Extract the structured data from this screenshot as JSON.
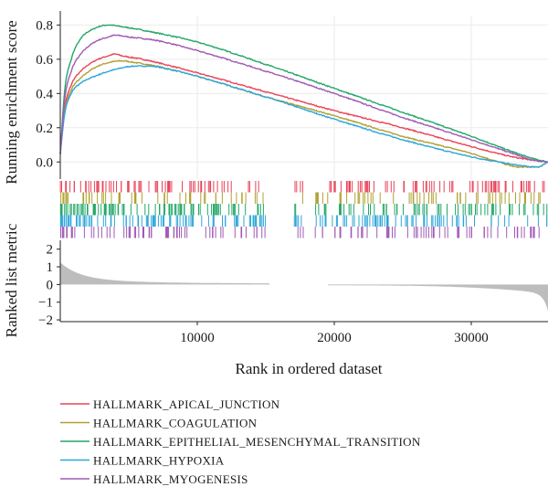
{
  "chart_data": {
    "type": "line",
    "x_axis": {
      "label": "Rank in ordered dataset",
      "range": [
        0,
        35600
      ],
      "ticks": [
        10000,
        20000,
        30000
      ],
      "tick_labels": [
        "10000",
        "20000",
        "30000"
      ]
    },
    "es_panel": {
      "ylabel": "Running enrichment score",
      "ylim": [
        -0.1,
        0.85
      ],
      "yticks": [
        0.0,
        0.2,
        0.4,
        0.6,
        0.8
      ],
      "ytick_labels": [
        "0.0",
        "0.2",
        "0.4",
        "0.6",
        "0.8"
      ],
      "grid": true
    },
    "metric_panel": {
      "ylabel": "Ranked list metric",
      "ylim": [
        -2.1,
        2.5
      ],
      "yticks": [
        2,
        1,
        0,
        -1,
        -2
      ],
      "ytick_labels": [
        "2",
        "1",
        "0",
        "−1",
        "−2"
      ],
      "fill_color": "#bdbdbd"
    },
    "series": [
      {
        "name": "HALLMARK_APICAL_JUNCTION",
        "color": "#e8445a",
        "x": [
          0,
          300,
          800,
          1500,
          2500,
          3500,
          4000,
          4500,
          6000,
          10000,
          15000,
          20000,
          25000,
          30000,
          33000,
          34500,
          35600
        ],
        "values": [
          0.05,
          0.3,
          0.45,
          0.53,
          0.59,
          0.62,
          0.63,
          0.62,
          0.6,
          0.52,
          0.41,
          0.3,
          0.2,
          0.09,
          0.03,
          0.01,
          0.0
        ]
      },
      {
        "name": "HALLMARK_COAGULATION",
        "color": "#b1a033",
        "x": [
          0,
          300,
          800,
          1500,
          2500,
          3500,
          4500,
          5500,
          7000,
          10000,
          15000,
          20000,
          25000,
          30000,
          32000,
          33500,
          34800,
          35600
        ],
        "values": [
          0.05,
          0.28,
          0.42,
          0.49,
          0.55,
          0.58,
          0.59,
          0.58,
          0.56,
          0.5,
          0.38,
          0.27,
          0.15,
          0.05,
          0.0,
          -0.03,
          -0.03,
          0.0
        ]
      },
      {
        "name": "HALLMARK_EPITHELIAL_MESENCHYMAL_TRANSITION",
        "color": "#23a768",
        "x": [
          0,
          300,
          800,
          1500,
          2500,
          3500,
          4500,
          6000,
          10000,
          15000,
          20000,
          25000,
          30000,
          33000,
          34500,
          35600
        ],
        "values": [
          0.05,
          0.4,
          0.6,
          0.72,
          0.78,
          0.8,
          0.79,
          0.77,
          0.7,
          0.57,
          0.43,
          0.29,
          0.15,
          0.06,
          0.02,
          0.0
        ]
      },
      {
        "name": "HALLMARK_HYPOXIA",
        "color": "#2da6d8",
        "x": [
          0,
          300,
          800,
          1500,
          2500,
          4000,
          5500,
          6500,
          8000,
          10000,
          15000,
          20000,
          25000,
          30000,
          32000,
          33500,
          34800,
          35600
        ],
        "values": [
          0.05,
          0.27,
          0.4,
          0.46,
          0.5,
          0.54,
          0.56,
          0.56,
          0.54,
          0.5,
          0.38,
          0.25,
          0.13,
          0.03,
          0.0,
          -0.02,
          -0.03,
          0.0
        ]
      },
      {
        "name": "HALLMARK_MYOGENESIS",
        "color": "#a05ab5",
        "x": [
          0,
          300,
          800,
          1500,
          2500,
          3500,
          4000,
          5000,
          7000,
          10000,
          15000,
          20000,
          25000,
          30000,
          33000,
          34500,
          35600
        ],
        "values": [
          0.05,
          0.35,
          0.53,
          0.63,
          0.7,
          0.73,
          0.74,
          0.73,
          0.71,
          0.65,
          0.53,
          0.4,
          0.26,
          0.13,
          0.05,
          0.01,
          0.0
        ]
      }
    ],
    "hit_ranges": [
      [
        [
          0,
          15000
        ],
        [
          17000,
          17800
        ],
        [
          18500,
          35600
        ]
      ],
      [
        [
          0,
          15000
        ],
        [
          17000,
          17800
        ],
        [
          18500,
          35600
        ]
      ],
      [
        [
          0,
          15000
        ],
        [
          17000,
          17800
        ],
        [
          18500,
          35600
        ]
      ],
      [
        [
          0,
          15000
        ],
        [
          17000,
          17800
        ],
        [
          18500,
          35600
        ]
      ],
      [
        [
          0,
          15000
        ],
        [
          17000,
          17800
        ],
        [
          18500,
          35600
        ]
      ]
    ],
    "hit_counts": [
      150,
      110,
      170,
      170,
      130
    ],
    "legend_placement": "bottom-left"
  }
}
